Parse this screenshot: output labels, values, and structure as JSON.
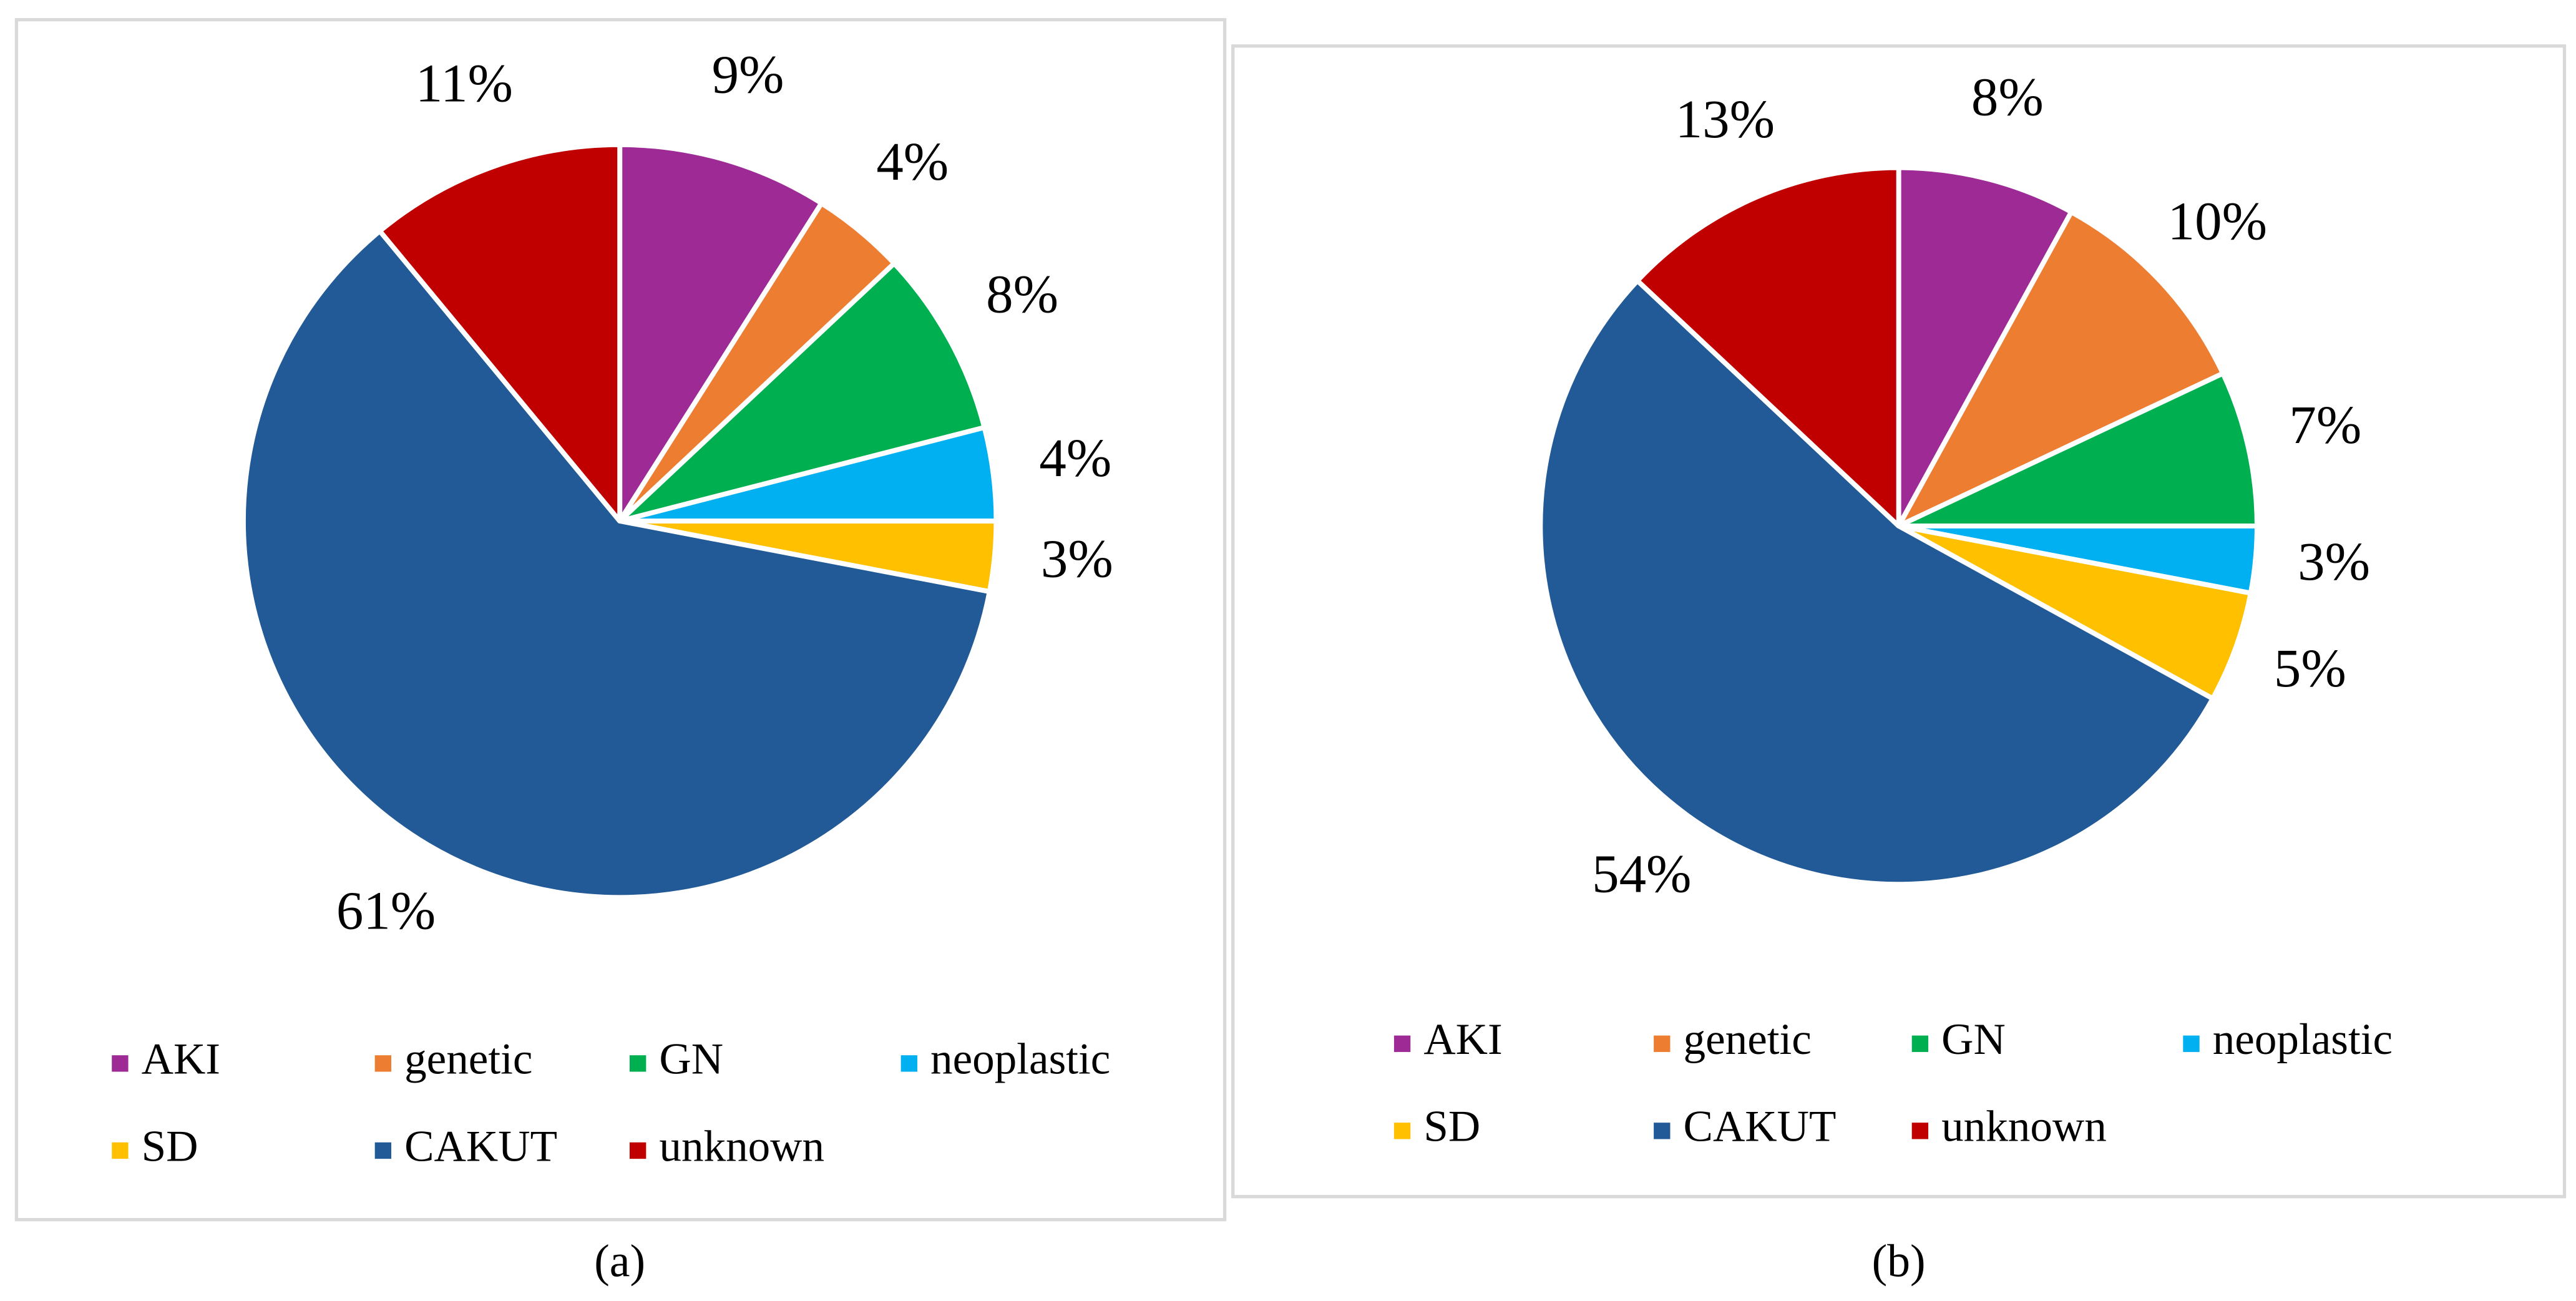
{
  "chart_data": [
    {
      "type": "pie",
      "caption": "(a)",
      "categories": [
        "AKI",
        "genetic",
        "GN",
        "neoplastic",
        "SD",
        "CAKUT",
        "unknown"
      ],
      "values": [
        9,
        4,
        8,
        4,
        3,
        61,
        11
      ],
      "value_labels": [
        "9%",
        "4%",
        "8%",
        "4%",
        "3%",
        "61%",
        "11%"
      ],
      "colors": [
        "#9e2a96",
        "#ed7d31",
        "#00b050",
        "#00b0f0",
        "#ffc000",
        "#215a96",
        "#c00000"
      ],
      "legend": "bottom"
    },
    {
      "type": "pie",
      "caption": "(b)",
      "categories": [
        "AKI",
        "genetic",
        "GN",
        "neoplastic",
        "SD",
        "CAKUT",
        "unknown"
      ],
      "values": [
        8,
        10,
        7,
        3,
        5,
        54,
        13
      ],
      "value_labels": [
        "8%",
        "10%",
        "7%",
        "3%",
        "5%",
        "54%",
        "13%"
      ],
      "colors": [
        "#9e2a96",
        "#ed7d31",
        "#00b050",
        "#00b0f0",
        "#ffc000",
        "#215a96",
        "#c00000"
      ],
      "legend": "bottom"
    }
  ]
}
